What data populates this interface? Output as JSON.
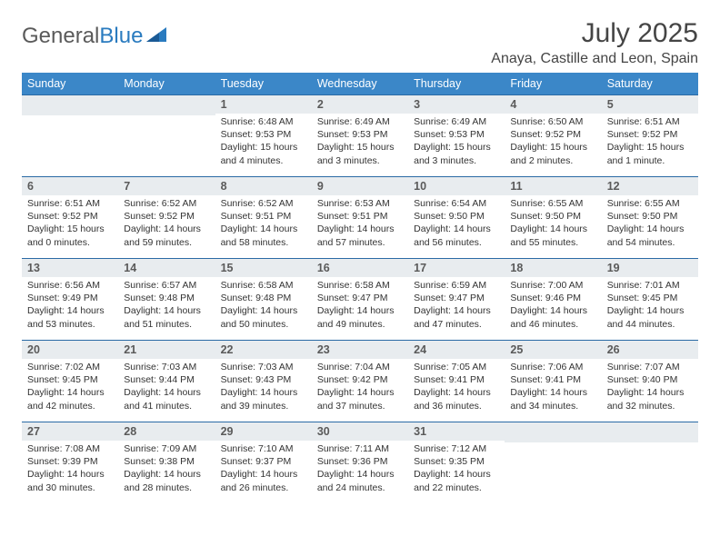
{
  "logo": {
    "part1": "General",
    "part2": "Blue"
  },
  "title": "July 2025",
  "location": "Anaya, Castille and Leon, Spain",
  "colors": {
    "header_bg": "#3b87c8",
    "header_text": "#ffffff",
    "border": "#2a6aa5",
    "daynum_bg": "#e8ecef",
    "text": "#333333",
    "title_color": "#454545"
  },
  "weekdays": [
    "Sunday",
    "Monday",
    "Tuesday",
    "Wednesday",
    "Thursday",
    "Friday",
    "Saturday"
  ],
  "layout": {
    "weeks": 5,
    "first_weekday_index": 2,
    "days_in_month": 31
  },
  "weeks": [
    [
      null,
      null,
      {
        "n": "1",
        "sunrise": "6:48 AM",
        "sunset": "9:53 PM",
        "daylight": "15 hours and 4 minutes."
      },
      {
        "n": "2",
        "sunrise": "6:49 AM",
        "sunset": "9:53 PM",
        "daylight": "15 hours and 3 minutes."
      },
      {
        "n": "3",
        "sunrise": "6:49 AM",
        "sunset": "9:53 PM",
        "daylight": "15 hours and 3 minutes."
      },
      {
        "n": "4",
        "sunrise": "6:50 AM",
        "sunset": "9:52 PM",
        "daylight": "15 hours and 2 minutes."
      },
      {
        "n": "5",
        "sunrise": "6:51 AM",
        "sunset": "9:52 PM",
        "daylight": "15 hours and 1 minute."
      }
    ],
    [
      {
        "n": "6",
        "sunrise": "6:51 AM",
        "sunset": "9:52 PM",
        "daylight": "15 hours and 0 minutes."
      },
      {
        "n": "7",
        "sunrise": "6:52 AM",
        "sunset": "9:52 PM",
        "daylight": "14 hours and 59 minutes."
      },
      {
        "n": "8",
        "sunrise": "6:52 AM",
        "sunset": "9:51 PM",
        "daylight": "14 hours and 58 minutes."
      },
      {
        "n": "9",
        "sunrise": "6:53 AM",
        "sunset": "9:51 PM",
        "daylight": "14 hours and 57 minutes."
      },
      {
        "n": "10",
        "sunrise": "6:54 AM",
        "sunset": "9:50 PM",
        "daylight": "14 hours and 56 minutes."
      },
      {
        "n": "11",
        "sunrise": "6:55 AM",
        "sunset": "9:50 PM",
        "daylight": "14 hours and 55 minutes."
      },
      {
        "n": "12",
        "sunrise": "6:55 AM",
        "sunset": "9:50 PM",
        "daylight": "14 hours and 54 minutes."
      }
    ],
    [
      {
        "n": "13",
        "sunrise": "6:56 AM",
        "sunset": "9:49 PM",
        "daylight": "14 hours and 53 minutes."
      },
      {
        "n": "14",
        "sunrise": "6:57 AM",
        "sunset": "9:48 PM",
        "daylight": "14 hours and 51 minutes."
      },
      {
        "n": "15",
        "sunrise": "6:58 AM",
        "sunset": "9:48 PM",
        "daylight": "14 hours and 50 minutes."
      },
      {
        "n": "16",
        "sunrise": "6:58 AM",
        "sunset": "9:47 PM",
        "daylight": "14 hours and 49 minutes."
      },
      {
        "n": "17",
        "sunrise": "6:59 AM",
        "sunset": "9:47 PM",
        "daylight": "14 hours and 47 minutes."
      },
      {
        "n": "18",
        "sunrise": "7:00 AM",
        "sunset": "9:46 PM",
        "daylight": "14 hours and 46 minutes."
      },
      {
        "n": "19",
        "sunrise": "7:01 AM",
        "sunset": "9:45 PM",
        "daylight": "14 hours and 44 minutes."
      }
    ],
    [
      {
        "n": "20",
        "sunrise": "7:02 AM",
        "sunset": "9:45 PM",
        "daylight": "14 hours and 42 minutes."
      },
      {
        "n": "21",
        "sunrise": "7:03 AM",
        "sunset": "9:44 PM",
        "daylight": "14 hours and 41 minutes."
      },
      {
        "n": "22",
        "sunrise": "7:03 AM",
        "sunset": "9:43 PM",
        "daylight": "14 hours and 39 minutes."
      },
      {
        "n": "23",
        "sunrise": "7:04 AM",
        "sunset": "9:42 PM",
        "daylight": "14 hours and 37 minutes."
      },
      {
        "n": "24",
        "sunrise": "7:05 AM",
        "sunset": "9:41 PM",
        "daylight": "14 hours and 36 minutes."
      },
      {
        "n": "25",
        "sunrise": "7:06 AM",
        "sunset": "9:41 PM",
        "daylight": "14 hours and 34 minutes."
      },
      {
        "n": "26",
        "sunrise": "7:07 AM",
        "sunset": "9:40 PM",
        "daylight": "14 hours and 32 minutes."
      }
    ],
    [
      {
        "n": "27",
        "sunrise": "7:08 AM",
        "sunset": "9:39 PM",
        "daylight": "14 hours and 30 minutes."
      },
      {
        "n": "28",
        "sunrise": "7:09 AM",
        "sunset": "9:38 PM",
        "daylight": "14 hours and 28 minutes."
      },
      {
        "n": "29",
        "sunrise": "7:10 AM",
        "sunset": "9:37 PM",
        "daylight": "14 hours and 26 minutes."
      },
      {
        "n": "30",
        "sunrise": "7:11 AM",
        "sunset": "9:36 PM",
        "daylight": "14 hours and 24 minutes."
      },
      {
        "n": "31",
        "sunrise": "7:12 AM",
        "sunset": "9:35 PM",
        "daylight": "14 hours and 22 minutes."
      },
      null,
      null
    ]
  ]
}
